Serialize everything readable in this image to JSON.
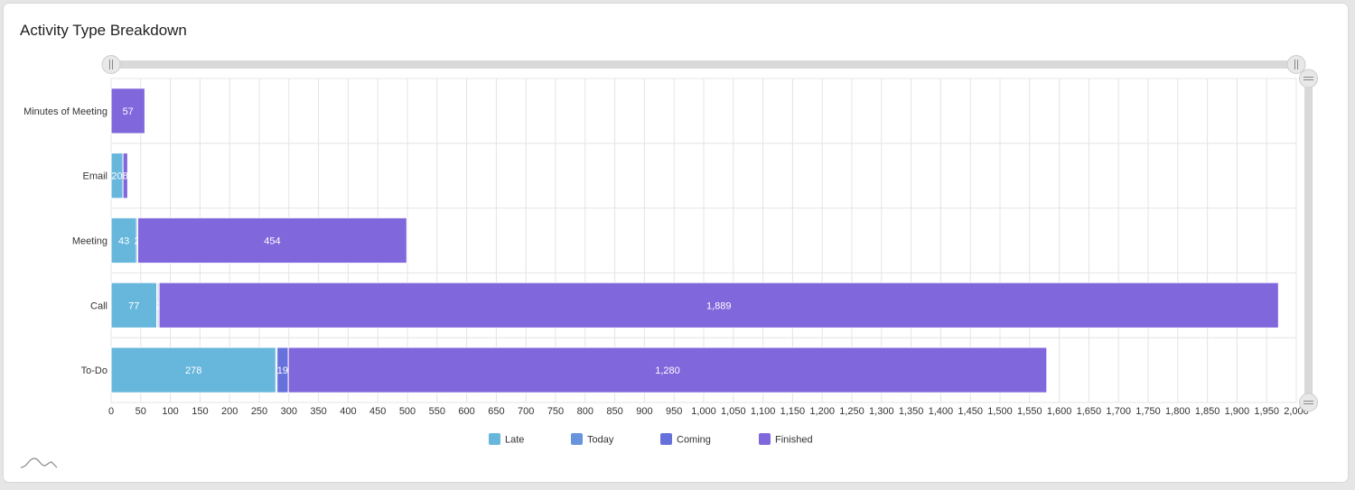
{
  "title": "Activity Type Breakdown",
  "chart_data": {
    "type": "bar",
    "orientation": "horizontal",
    "stacked": true,
    "title": "Activity Type Breakdown",
    "categories": [
      "Minutes of Meeting",
      "Email",
      "Meeting",
      "Call",
      "To-Do"
    ],
    "series": [
      {
        "name": "Late",
        "color": "#67b7dc",
        "values": [
          0,
          20,
          43,
          77,
          278
        ],
        "labels": [
          "",
          "20",
          "43",
          "77",
          "278"
        ]
      },
      {
        "name": "Today",
        "color": "#6794dc",
        "values": [
          0,
          0,
          2,
          2,
          2
        ],
        "labels": [
          "",
          "",
          "2",
          "",
          ""
        ]
      },
      {
        "name": "Coming",
        "color": "#6771dc",
        "values": [
          0,
          0,
          0,
          2,
          19
        ],
        "labels": [
          "",
          "",
          "",
          "2",
          "19"
        ]
      },
      {
        "name": "Finished",
        "color": "#8067dc",
        "values": [
          57,
          8,
          454,
          1889,
          1280
        ],
        "labels": [
          "57",
          "8",
          "454",
          "1,889",
          "1,280"
        ]
      }
    ],
    "xlim": [
      0,
      2000
    ],
    "x_tick_step": 50,
    "grid": true,
    "legend": "bottom"
  }
}
